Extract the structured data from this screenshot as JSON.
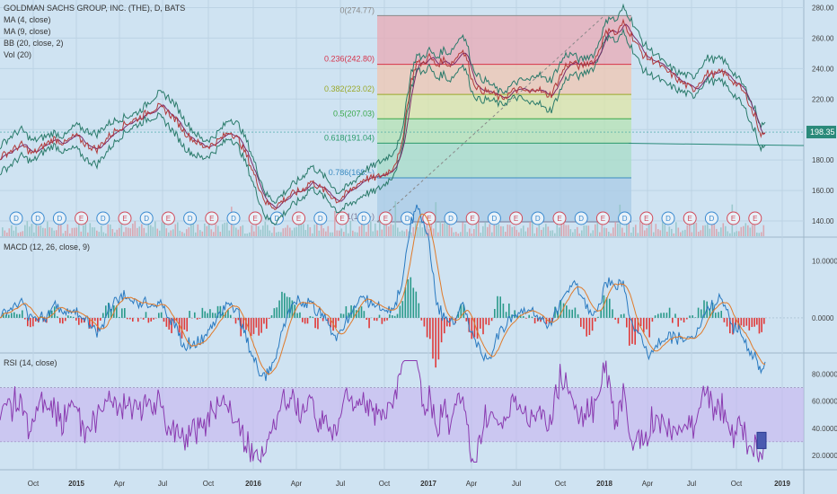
{
  "chart_data": [
    {
      "type": "candlestick",
      "legend": [
        "GOLDMAN SACHS GROUP, INC. (THE), D, BATS",
        "MA (4, close)",
        "MA (9, close)",
        "BB (20, close, 2)",
        "Vol (20)"
      ],
      "ylim": [
        130,
        285
      ],
      "y_ticks": [
        "280.00",
        "260.00",
        "240.00",
        "220.00",
        "200.00",
        "180.00",
        "160.00",
        "140.00"
      ],
      "last_price": "198.35",
      "fib_levels": [
        {
          "label": "0(274.77)",
          "value": 274.77,
          "color": "#8a8a8a"
        },
        {
          "label": "0.236(242.80)",
          "value": 242.8,
          "color": "#d6334a"
        },
        {
          "label": "0.382(223.02)",
          "value": 223.02,
          "color": "#9aa82a"
        },
        {
          "label": "0.5(207.03)",
          "value": 207.03,
          "color": "#3aa84a"
        },
        {
          "label": "0.618(191.04)",
          "value": 191.04,
          "color": "#2a9a6a"
        },
        {
          "label": "0.786(168.~)",
          "value": 168.3,
          "color": "#3a8ac0"
        },
        {
          "label": "1(139~)",
          "value": 139.4,
          "color": "#7a7a9a"
        }
      ],
      "price_path": [
        [
          0,
          182
        ],
        [
          12,
          186
        ],
        [
          24,
          190
        ],
        [
          36,
          184
        ],
        [
          48,
          189
        ],
        [
          60,
          194
        ],
        [
          72,
          191
        ],
        [
          84,
          196
        ],
        [
          96,
          190
        ],
        [
          108,
          187
        ],
        [
          120,
          195
        ],
        [
          132,
          201
        ],
        [
          144,
          205
        ],
        [
          156,
          208
        ],
        [
          166,
          212
        ],
        [
          176,
          215
        ],
        [
          186,
          212
        ],
        [
          196,
          206
        ],
        [
          206,
          198
        ],
        [
          216,
          193
        ],
        [
          226,
          189
        ],
        [
          236,
          190
        ],
        [
          246,
          194
        ],
        [
          256,
          199
        ],
        [
          266,
          193
        ],
        [
          276,
          181
        ],
        [
          286,
          166
        ],
        [
          296,
          152
        ],
        [
          306,
          149
        ],
        [
          316,
          154
        ],
        [
          326,
          158
        ],
        [
          336,
          160
        ],
        [
          346,
          166
        ],
        [
          356,
          162
        ],
        [
          366,
          158
        ],
        [
          376,
          153
        ],
        [
          386,
          158
        ],
        [
          396,
          163
        ],
        [
          406,
          168
        ],
        [
          416,
          168
        ],
        [
          426,
          170
        ],
        [
          436,
          174
        ],
        [
          446,
          185
        ],
        [
          452,
          210
        ],
        [
          458,
          232
        ],
        [
          464,
          244
        ],
        [
          470,
          243
        ],
        [
          478,
          248
        ],
        [
          486,
          242
        ],
        [
          494,
          246
        ],
        [
          500,
          242
        ],
        [
          508,
          247
        ],
        [
          514,
          253
        ],
        [
          520,
          246
        ],
        [
          526,
          232
        ],
        [
          534,
          226
        ],
        [
          542,
          225
        ],
        [
          550,
          223
        ],
        [
          558,
          220
        ],
        [
          566,
          223
        ],
        [
          574,
          226
        ],
        [
          582,
          226
        ],
        [
          590,
          224
        ],
        [
          598,
          228
        ],
        [
          606,
          223
        ],
        [
          614,
          223
        ],
        [
          622,
          233
        ],
        [
          630,
          242
        ],
        [
          638,
          244
        ],
        [
          646,
          241
        ],
        [
          654,
          244
        ],
        [
          662,
          245
        ],
        [
          670,
          257
        ],
        [
          678,
          267
        ],
        [
          686,
          262
        ],
        [
          694,
          270
        ],
        [
          700,
          265
        ],
        [
          708,
          257
        ],
        [
          716,
          249
        ],
        [
          724,
          246
        ],
        [
          732,
          244
        ],
        [
          740,
          239
        ],
        [
          748,
          236
        ],
        [
          756,
          232
        ],
        [
          764,
          229
        ],
        [
          772,
          226
        ],
        [
          780,
          232
        ],
        [
          788,
          237
        ],
        [
          796,
          236
        ],
        [
          804,
          238
        ],
        [
          812,
          234
        ],
        [
          820,
          230
        ],
        [
          826,
          226
        ],
        [
          832,
          221
        ],
        [
          838,
          211
        ],
        [
          842,
          208
        ],
        [
          846,
          197
        ],
        [
          850,
          196
        ],
        [
          852,
          198
        ]
      ],
      "trend_line": {
        "from": [
          700,
          191.0
        ],
        "to": [
          895,
          189.5
        ]
      },
      "dividend_markers": [
        "D",
        "D",
        "D",
        "E",
        "D",
        "E",
        "D",
        "E",
        "D",
        "E",
        "D",
        "E",
        "D",
        "E",
        "D",
        "E",
        "D",
        "E",
        "D",
        "E",
        "D",
        "E",
        "D",
        "E",
        "D",
        "E",
        "D",
        "E",
        "D",
        "E",
        "D",
        "E",
        "D",
        "E",
        "E"
      ]
    },
    {
      "type": "line",
      "legend": "MACD (12, 26, close, 9)",
      "ylim": [
        -6,
        14
      ],
      "y_ticks": [
        "10.0000",
        "0.0000"
      ]
    },
    {
      "type": "line",
      "legend": "RSI (14, close)",
      "ylim": [
        10,
        95
      ],
      "y_ticks": [
        "80.0000",
        "60.0000",
        "40.0000",
        "20.0000"
      ]
    }
  ],
  "x_axis": {
    "ticks": [
      {
        "label": "Oct",
        "x": 37
      },
      {
        "label": "2015",
        "x": 85
      },
      {
        "label": "Apr",
        "x": 133
      },
      {
        "label": "Jul",
        "x": 181
      },
      {
        "label": "Oct",
        "x": 232
      },
      {
        "label": "2016",
        "x": 282
      },
      {
        "label": "Apr",
        "x": 330
      },
      {
        "label": "Jul",
        "x": 379
      },
      {
        "label": "Oct",
        "x": 428
      },
      {
        "label": "2017",
        "x": 477
      },
      {
        "label": "Apr",
        "x": 525
      },
      {
        "label": "Jul",
        "x": 575
      },
      {
        "label": "Oct",
        "x": 624
      },
      {
        "label": "2018",
        "x": 673
      },
      {
        "label": "Apr",
        "x": 721
      },
      {
        "label": "Jul",
        "x": 770
      },
      {
        "label": "Oct",
        "x": 820
      },
      {
        "label": "2019",
        "x": 871
      }
    ]
  },
  "colors": {
    "background": "#cfe3f2",
    "price_line": "#b23a3a",
    "ma4": "#7a2a6a",
    "bb": "#2a7a6a",
    "macd": "#2a7ac0",
    "signal": "#e07a2a",
    "hist_pos": "#2a9a8a",
    "hist_neg": "#e03a3a",
    "rsi": "#8a3ab0",
    "rsi_band": "#c8b4f0"
  }
}
